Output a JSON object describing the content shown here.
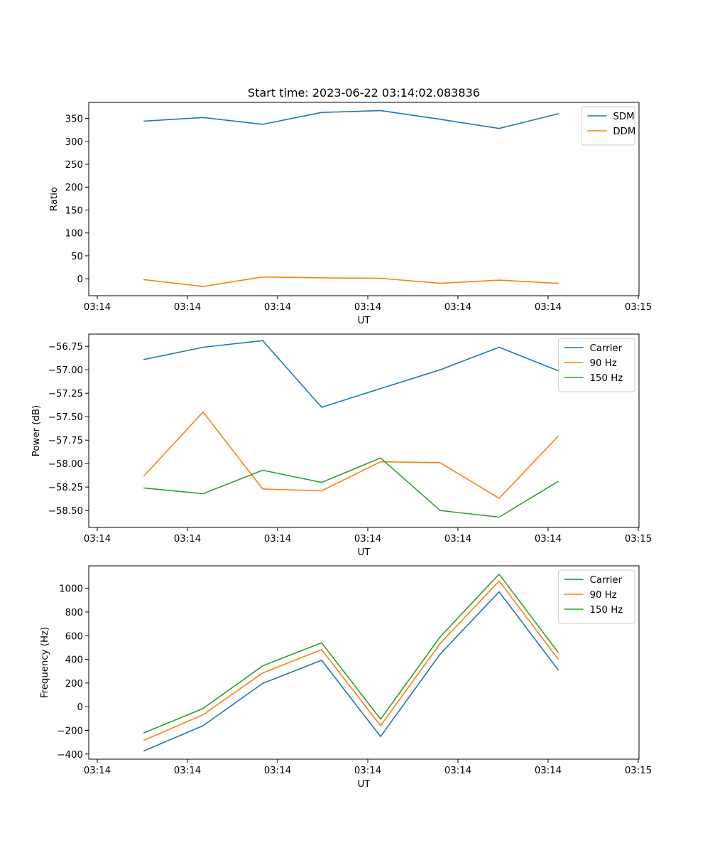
{
  "chart_data": [
    {
      "type": "line",
      "title": "Start time: 2023-06-22 03:14:02.083836",
      "xlabel": "UT",
      "ylabel": "Ratio",
      "x_tick_labels": [
        "03:14",
        "03:14",
        "03:14",
        "03:14",
        "03:14",
        "03:14",
        "03:15"
      ],
      "y_ticks": [
        0,
        50,
        100,
        150,
        200,
        250,
        300,
        350
      ],
      "ylim": [
        -37,
        385
      ],
      "grid": false,
      "legend_position": "top-right",
      "series": [
        {
          "name": "SDM",
          "color": "#1f77b4",
          "values": [
            344,
            352,
            337,
            363,
            367,
            348,
            328,
            360
          ]
        },
        {
          "name": "DDM",
          "color": "#ff7f0e",
          "values": [
            -2,
            -17,
            4,
            2,
            1,
            -10,
            -3,
            -10
          ]
        }
      ]
    },
    {
      "type": "line",
      "title": "",
      "xlabel": "UT",
      "ylabel": "Power (dB)",
      "x_tick_labels": [
        "03:14",
        "03:14",
        "03:14",
        "03:14",
        "03:14",
        "03:14",
        "03:15"
      ],
      "y_ticks": [
        -58.5,
        -58.25,
        -58.0,
        -57.75,
        -57.5,
        -57.25,
        -57.0,
        -56.75
      ],
      "y_tick_labels": [
        "−58.50",
        "−58.25",
        "−58.00",
        "−57.75",
        "−57.50",
        "−57.25",
        "−57.00",
        "−56.75"
      ],
      "ylim": [
        -58.68,
        -56.62
      ],
      "grid": false,
      "legend_position": "top-right",
      "series": [
        {
          "name": "Carrier",
          "color": "#1f77b4",
          "values": [
            -56.89,
            -56.76,
            -56.69,
            -57.4,
            -57.2,
            -57.0,
            -56.76,
            -57.01
          ]
        },
        {
          "name": "90 Hz",
          "color": "#ff7f0e",
          "values": [
            -58.13,
            -57.45,
            -58.27,
            -58.29,
            -57.98,
            -57.99,
            -58.37,
            -57.71
          ]
        },
        {
          "name": "150 Hz",
          "color": "#2ca02c",
          "values": [
            -58.26,
            -58.32,
            -58.07,
            -58.2,
            -57.94,
            -58.5,
            -58.57,
            -58.19
          ]
        }
      ]
    },
    {
      "type": "line",
      "title": "",
      "xlabel": "UT",
      "ylabel": "Frequency (Hz)",
      "x_tick_labels": [
        "03:14",
        "03:14",
        "03:14",
        "03:14",
        "03:14",
        "03:14",
        "03:15"
      ],
      "y_ticks": [
        -400,
        -200,
        0,
        200,
        400,
        600,
        800,
        1000
      ],
      "y_tick_labels": [
        "−400",
        "−200",
        "0",
        "200",
        "400",
        "600",
        "800",
        "1000"
      ],
      "ylim": [
        -443,
        1190
      ],
      "grid": false,
      "legend_position": "top-right",
      "series": [
        {
          "name": "Carrier",
          "color": "#1f77b4",
          "values": [
            -372,
            -160,
            197,
            392,
            -252,
            445,
            970,
            313
          ]
        },
        {
          "name": "90 Hz",
          "color": "#ff7f0e",
          "values": [
            -283,
            -68,
            285,
            482,
            -160,
            535,
            1062,
            403
          ]
        },
        {
          "name": "150 Hz",
          "color": "#2ca02c",
          "values": [
            -220,
            -15,
            345,
            540,
            -105,
            590,
            1120,
            460
          ]
        }
      ]
    }
  ]
}
